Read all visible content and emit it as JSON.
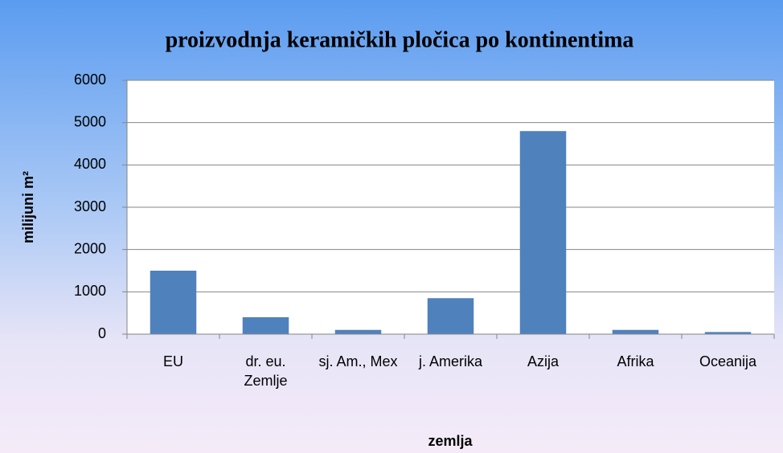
{
  "chart_data": {
    "type": "bar",
    "title": "proizvodnja keramičkih pločica po kontinentima",
    "x_label": "zemlja",
    "y_label": "milijuni m²",
    "categories": [
      "EU",
      "dr. eu. Zemlje",
      "sj. Am., Mex",
      "j. Amerika",
      "Azija",
      "Afrika",
      "Oceanija"
    ],
    "values": [
      1500,
      400,
      100,
      850,
      4800,
      100,
      50
    ],
    "color": "#4f81bd",
    "ylim": [
      0,
      6000
    ],
    "yticks": [
      0,
      1000,
      2000,
      3000,
      4000,
      5000,
      6000
    ],
    "grid": true
  }
}
